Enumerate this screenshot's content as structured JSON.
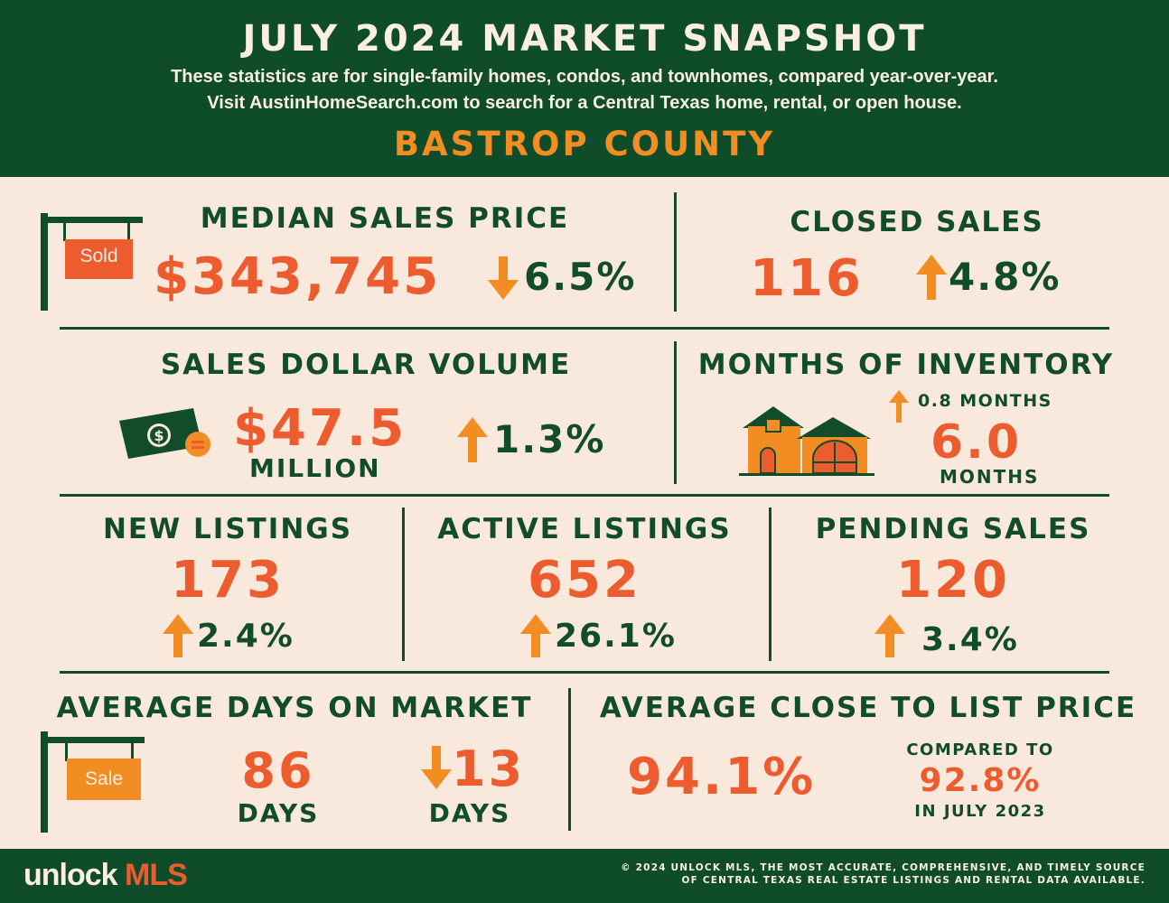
{
  "header": {
    "title": "JULY 2024 MARKET SNAPSHOT",
    "subtitle_line1": "These statistics are for single-family homes, condos, and townhomes, compared year-over-year.",
    "subtitle_line2": "Visit AustinHomeSearch.com to search for a Central Texas home, rental, or open house.",
    "county": "BASTROP COUNTY"
  },
  "colors": {
    "dark_green": "#0f4d2a",
    "red_orange": "#ec5c2e",
    "amber": "#f28d24",
    "cream": "#f9e8dc"
  },
  "median_sales_price": {
    "label": "MEDIAN SALES PRICE",
    "value": "$343,745",
    "change": "6.5%",
    "direction": "down",
    "icon": "sold-sign-icon",
    "sign_text": "Sold"
  },
  "closed_sales": {
    "label": "CLOSED SALES",
    "value": "116",
    "change": "4.8%",
    "direction": "up"
  },
  "sales_dollar_volume": {
    "label": "SALES DOLLAR VOLUME",
    "value": "$47.5",
    "unit": "MILLION",
    "change": "1.3%",
    "direction": "up",
    "icon": "money-icon"
  },
  "months_of_inventory": {
    "label": "MONTHS OF INVENTORY",
    "change": "0.8 MONTHS",
    "direction": "up",
    "value": "6.0",
    "unit": "MONTHS",
    "icon": "houses-icon"
  },
  "new_listings": {
    "label": "NEW LISTINGS",
    "value": "173",
    "change": "2.4%",
    "direction": "up"
  },
  "active_listings": {
    "label": "ACTIVE LISTINGS",
    "value": "652",
    "change": "26.1%",
    "direction": "up"
  },
  "pending_sales": {
    "label": "PENDING SALES",
    "value": "120",
    "change": "3.4%",
    "direction": "up"
  },
  "avg_days_on_market": {
    "label": "AVERAGE DAYS ON MARKET",
    "value": "86",
    "unit": "DAYS",
    "change": "13",
    "change_unit": "DAYS",
    "direction": "down",
    "icon": "sale-sign-icon",
    "sign_text": "Sale"
  },
  "avg_close_to_list": {
    "label": "AVERAGE CLOSE TO LIST PRICE",
    "value": "94.1%",
    "compared_label": "COMPARED TO",
    "compared_value": "92.8%",
    "compared_period": "IN JULY 2023"
  },
  "footer": {
    "logo_white": "unlock",
    "logo_orange": "MLS",
    "copyright_line1": "© 2024 UNLOCK MLS, THE MOST ACCURATE, COMPREHENSIVE, AND TIMELY SOURCE",
    "copyright_line2": "OF CENTRAL TEXAS REAL ESTATE LISTINGS AND RENTAL DATA AVAILABLE."
  }
}
